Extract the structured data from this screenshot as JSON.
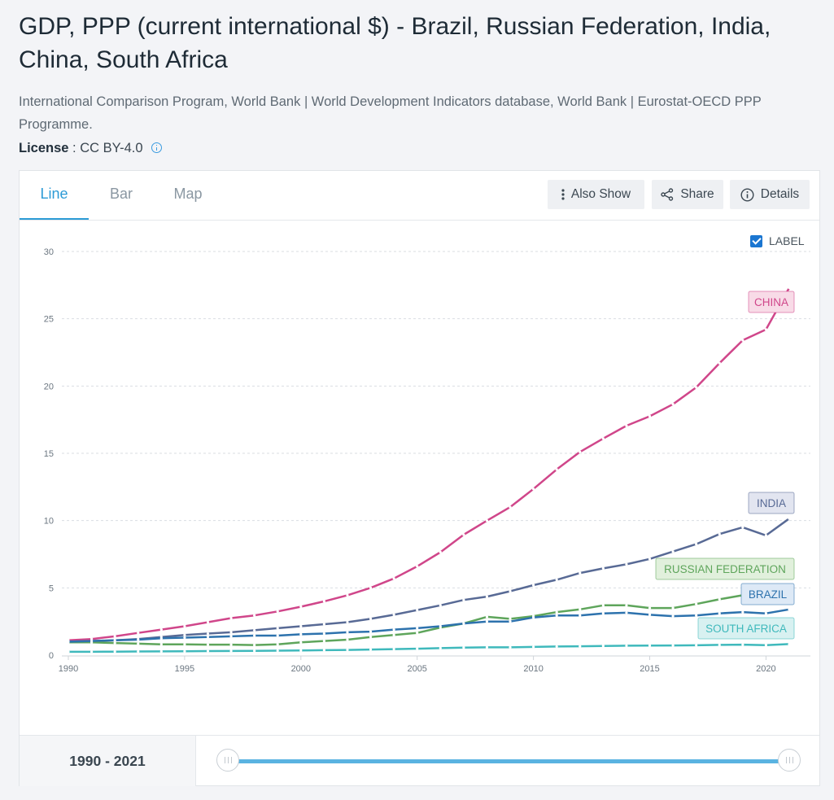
{
  "header": {
    "title": "GDP, PPP (current international $) - Brazil, Russian Federation, India, China, South Africa",
    "source": "International Comparison Program, World Bank | World Development Indicators database, World Bank | Eurostat-OECD PPP Programme.",
    "license_label": "License",
    "license_value": ": CC BY-4.0"
  },
  "tabs": [
    {
      "label": "Line",
      "active": true
    },
    {
      "label": "Bar",
      "active": false
    },
    {
      "label": "Map",
      "active": false
    }
  ],
  "toolbar": {
    "also_show": "Also Show",
    "share": "Share",
    "details": "Details"
  },
  "label_toggle": {
    "text": "LABEL",
    "checked": true
  },
  "range": {
    "label": "1990 - 2021",
    "start": 1990,
    "end": 2021
  },
  "chart_data": {
    "type": "line",
    "x": [
      1990,
      1991,
      1992,
      1993,
      1994,
      1995,
      1996,
      1997,
      1998,
      1999,
      2000,
      2001,
      2002,
      2003,
      2004,
      2005,
      2006,
      2007,
      2008,
      2009,
      2010,
      2011,
      2012,
      2013,
      2014,
      2015,
      2016,
      2017,
      2018,
      2019,
      2020,
      2021
    ],
    "xticks": [
      1990,
      1995,
      2000,
      2005,
      2010,
      2015,
      2020
    ],
    "yticks": [
      0,
      5,
      10,
      15,
      20,
      25,
      30
    ],
    "ylim": [
      0,
      30
    ],
    "grid": true,
    "series": [
      {
        "name": "CHINA",
        "color": "#d0468a",
        "label_bg": "#f8dbe7",
        "values": [
          1.1,
          1.2,
          1.4,
          1.65,
          1.9,
          2.15,
          2.45,
          2.75,
          2.95,
          3.25,
          3.6,
          4.0,
          4.45,
          5.0,
          5.7,
          6.6,
          7.65,
          8.95,
          10.0,
          11.0,
          12.35,
          13.8,
          15.1,
          16.1,
          17.05,
          17.75,
          18.65,
          19.9,
          21.7,
          23.4,
          24.2,
          27.3
        ]
      },
      {
        "name": "INDIA",
        "color": "#586a95",
        "label_bg": "#e2e5f0",
        "values": [
          1.0,
          1.05,
          1.1,
          1.2,
          1.35,
          1.5,
          1.6,
          1.7,
          1.85,
          2.0,
          2.15,
          2.3,
          2.45,
          2.7,
          3.0,
          3.35,
          3.7,
          4.1,
          4.35,
          4.75,
          5.2,
          5.6,
          6.1,
          6.45,
          6.75,
          7.15,
          7.7,
          8.25,
          9.0,
          9.5,
          8.9,
          10.15
        ]
      },
      {
        "name": "RUSSIAN FEDERATION",
        "color": "#5ea55b",
        "label_bg": "#e1f0dc",
        "values": [
          0.95,
          0.95,
          0.9,
          0.85,
          0.8,
          0.8,
          0.78,
          0.78,
          0.75,
          0.8,
          0.95,
          1.05,
          1.15,
          1.35,
          1.5,
          1.65,
          2.05,
          2.35,
          2.85,
          2.7,
          2.9,
          3.2,
          3.4,
          3.7,
          3.7,
          3.5,
          3.5,
          3.8,
          4.15,
          4.45,
          4.45,
          4.75
        ]
      },
      {
        "name": "BRAZIL",
        "color": "#2d72ad",
        "label_bg": "#dde9f6",
        "values": [
          1.0,
          1.05,
          1.1,
          1.15,
          1.25,
          1.3,
          1.35,
          1.4,
          1.45,
          1.45,
          1.55,
          1.6,
          1.7,
          1.75,
          1.9,
          2.0,
          2.15,
          2.35,
          2.5,
          2.5,
          2.8,
          2.95,
          2.95,
          3.1,
          3.15,
          3.0,
          2.9,
          2.95,
          3.1,
          3.2,
          3.1,
          3.4
        ]
      },
      {
        "name": "SOUTH AFRICA",
        "color": "#3fb9bc",
        "label_bg": "#d8f1f1",
        "values": [
          0.25,
          0.25,
          0.26,
          0.27,
          0.28,
          0.29,
          0.3,
          0.31,
          0.32,
          0.33,
          0.35,
          0.37,
          0.39,
          0.42,
          0.45,
          0.48,
          0.52,
          0.56,
          0.58,
          0.58,
          0.61,
          0.64,
          0.66,
          0.68,
          0.7,
          0.71,
          0.72,
          0.73,
          0.76,
          0.78,
          0.74,
          0.82
        ]
      }
    ]
  }
}
